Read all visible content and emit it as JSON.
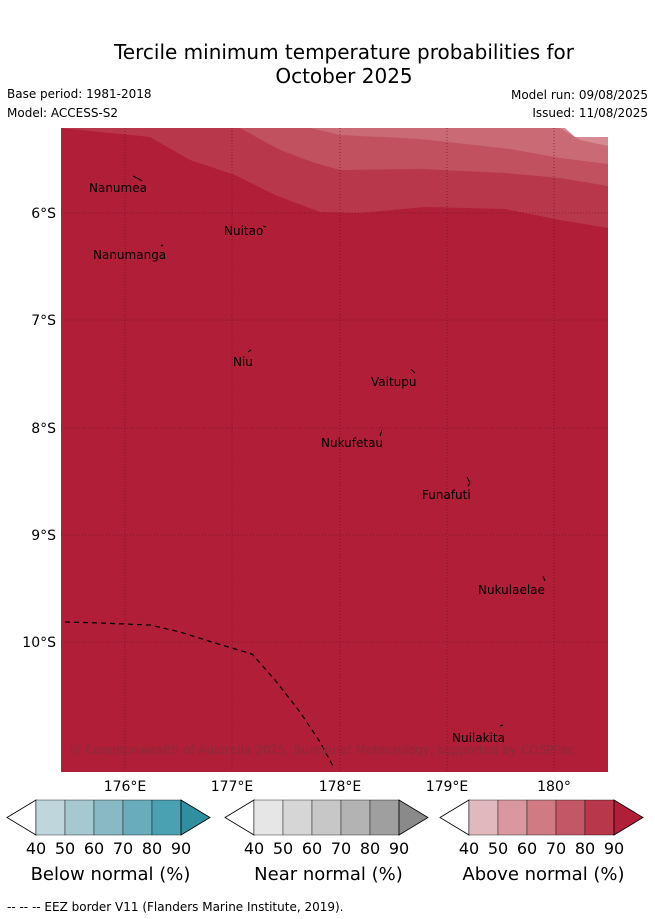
{
  "title_line1": "Tercile minimum temperature probabilities for",
  "title_line2": "October 2025",
  "base_period": "Base period: 1981-2018",
  "model": "Model: ACCESS-S2",
  "model_run": "Model run: 09/08/2025",
  "issued": "Issued: 11/08/2025",
  "map": {
    "lat_labels": [
      "6°S",
      "7°S",
      "8°S",
      "9°S",
      "10°S"
    ],
    "lon_labels": [
      "176°E",
      "177°E",
      "178°E",
      "179°E",
      "180°"
    ],
    "islands": [
      {
        "name": "Nanumea"
      },
      {
        "name": "Nuitao"
      },
      {
        "name": "Nanumanga"
      },
      {
        "name": "Niu"
      },
      {
        "name": "Vaitupu"
      },
      {
        "name": "Nukufetau"
      },
      {
        "name": "Funafuti"
      },
      {
        "name": "Nukulaelae"
      },
      {
        "name": "Nuilakita"
      }
    ],
    "copyright": "© Commonwealth of Australia 2025, Bureau of Meteorology, supported by COSPPac",
    "fill_color": "#b11e37"
  },
  "legends": [
    {
      "title": "Below normal (%)",
      "ticks": [
        "40",
        "50",
        "60",
        "70",
        "80",
        "90"
      ],
      "colors": [
        "#bfd6dc",
        "#a6c9cf",
        "#88b9c4",
        "#69acbb",
        "#49a1b2",
        "#2f8ea0"
      ]
    },
    {
      "title": "Near normal (%)",
      "ticks": [
        "40",
        "50",
        "60",
        "70",
        "80",
        "90"
      ],
      "colors": [
        "#e6e6e6",
        "#d6d6d6",
        "#c7c7c7",
        "#b3b3b3",
        "#9f9f9f",
        "#8a8a8a"
      ]
    },
    {
      "title": "Above normal (%)",
      "ticks": [
        "40",
        "50",
        "60",
        "70",
        "80",
        "90"
      ],
      "colors": [
        "#e2b8bf",
        "#d9989f",
        "#d07a84",
        "#c45766",
        "#b9374a",
        "#b11e37"
      ]
    }
  ],
  "footnote": "--  --  -- EEZ border V11 (Flanders Marine Institute, 2019)."
}
